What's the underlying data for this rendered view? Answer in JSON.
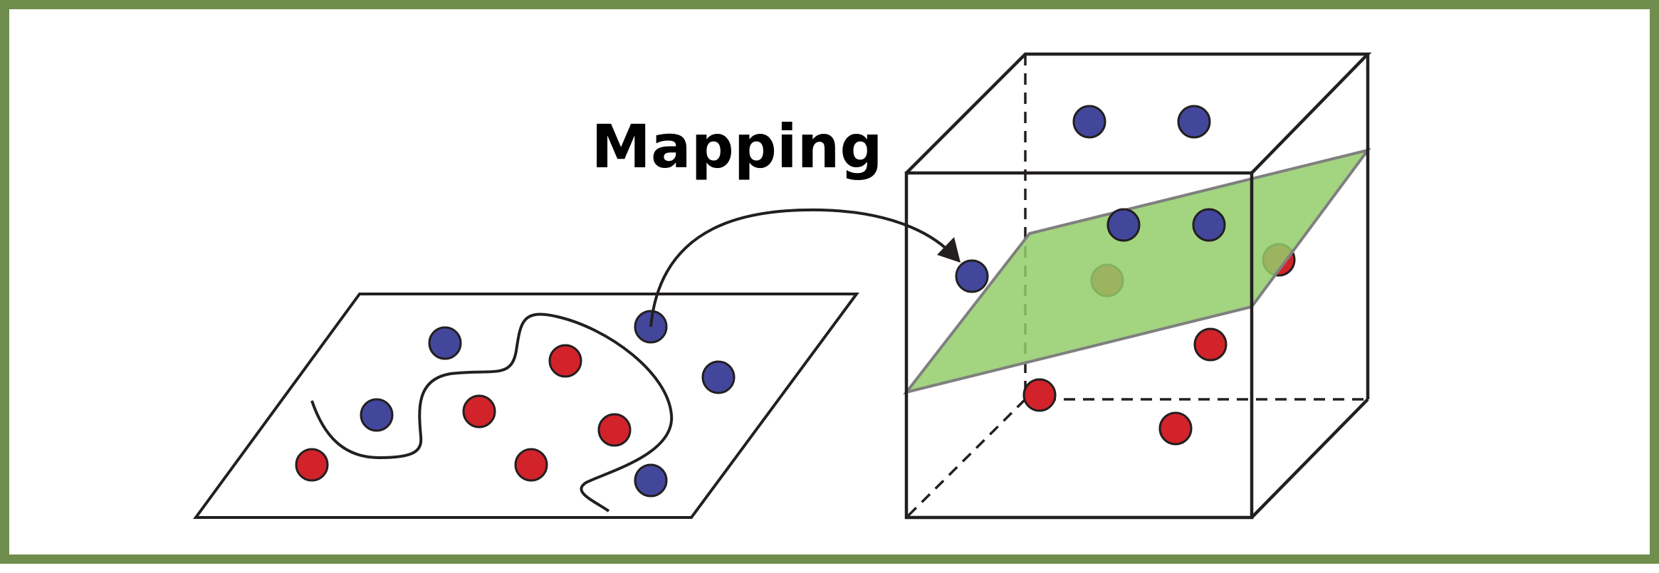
{
  "label": {
    "mapping": "Mapping"
  },
  "colors": {
    "frame": "#6f8e4d",
    "class_blue": "#43479c",
    "class_red": "#d2232a",
    "hyperplane": "#93cd6a",
    "line": "#231f20"
  }
}
